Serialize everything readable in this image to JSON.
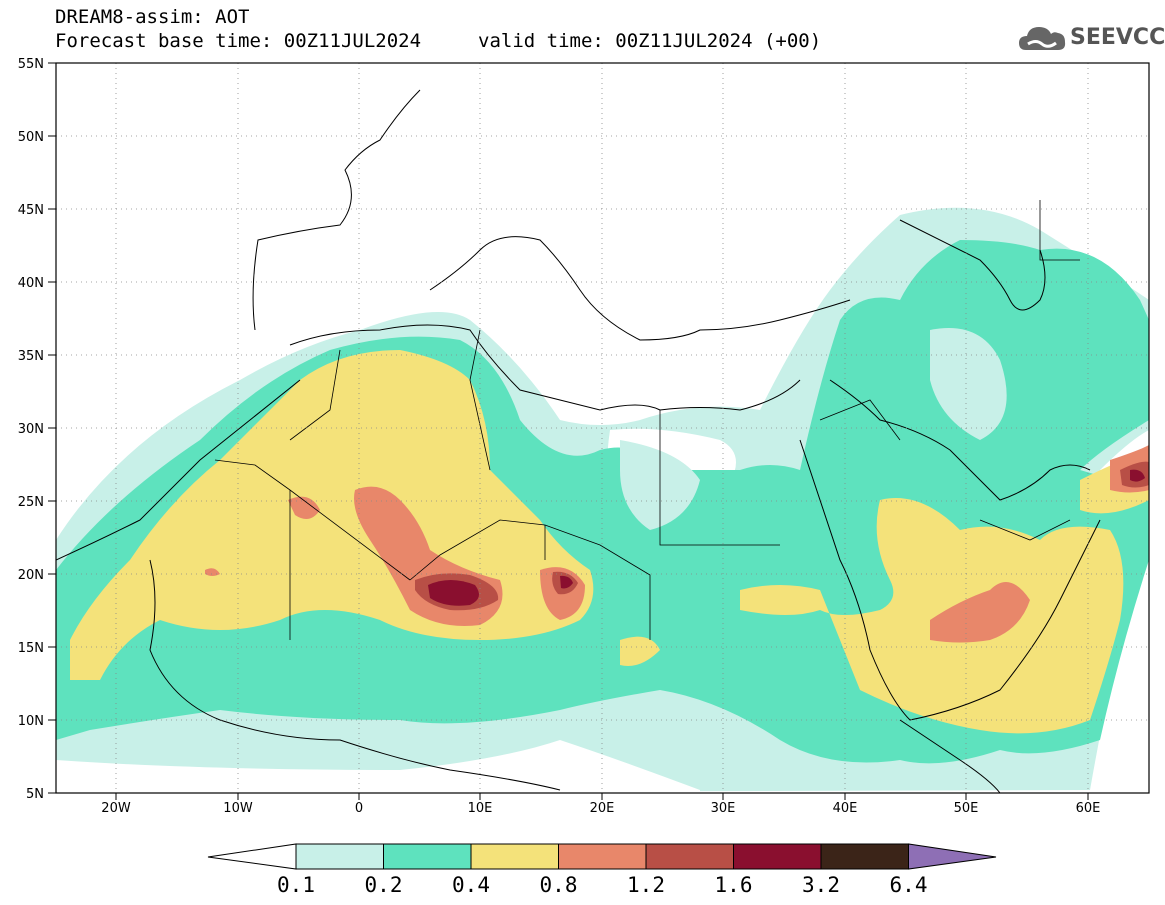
{
  "title": {
    "line1": "DREAM8-assim: AOT",
    "line2": "Forecast base time: 00Z11JUL2024",
    "valid": "valid time: 00Z11JUL2024 (+00)"
  },
  "logo": {
    "text": "SEEVCCC",
    "icon": "cloud-icon"
  },
  "map": {
    "lat_ticks": [
      "55N",
      "50N",
      "45N",
      "40N",
      "35N",
      "30N",
      "25N",
      "20N",
      "15N",
      "10N",
      "5N"
    ],
    "lon_ticks": [
      "20W",
      "10W",
      "0",
      "10E",
      "20E",
      "30E",
      "40E",
      "50E",
      "60E"
    ],
    "extent": {
      "lon_min": -25,
      "lon_max": 65,
      "lat_min": 5,
      "lat_max": 55
    }
  },
  "colorbar": {
    "levels": [
      "0.1",
      "0.2",
      "0.4",
      "0.8",
      "1.2",
      "1.6",
      "3.2",
      "6.4"
    ],
    "colors": [
      "#ffffff",
      "#c8f0e8",
      "#5ee2be",
      "#f4e27a",
      "#e8876a",
      "#b84f46",
      "#8a0f2f",
      "#3b2418",
      "#8e6fb5"
    ]
  },
  "chart_data": {
    "type": "heatmap",
    "title": "DREAM8-assim: AOT",
    "xlabel": "",
    "ylabel": "",
    "x_ticks": [
      "20W",
      "10W",
      "0",
      "10E",
      "20E",
      "30E",
      "40E",
      "50E",
      "60E"
    ],
    "y_ticks": [
      "55N",
      "50N",
      "45N",
      "40N",
      "35N",
      "30N",
      "25N",
      "20N",
      "15N",
      "10N",
      "5N"
    ],
    "levels": [
      0.1,
      0.2,
      0.4,
      0.8,
      1.2,
      1.6,
      3.2,
      6.4
    ],
    "xlim": [
      -25,
      65
    ],
    "ylim": [
      5,
      55
    ],
    "grid": true
  }
}
